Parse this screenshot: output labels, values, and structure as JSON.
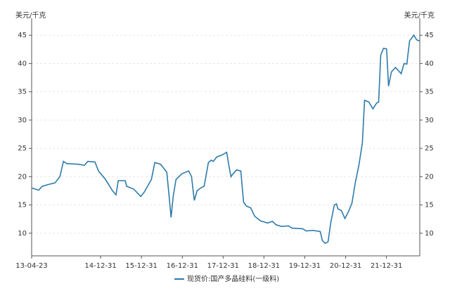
{
  "chart_data": {
    "type": "line",
    "y_label": "美元/千克",
    "y2_label": "美元/千克",
    "x": [
      "13-04-23",
      "13-05-25",
      "13-06-25",
      "13-07-27",
      "13-09-16",
      "13-11-18",
      "14-01-01",
      "14-02-01",
      "14-03-04",
      "14-06-07",
      "14-08-08",
      "14-09-08",
      "14-11-10",
      "14-12-12",
      "15-02-13",
      "15-04-17",
      "15-05-18",
      "15-06-07",
      "15-08-08",
      "15-08-21",
      "15-10-23",
      "15-12-25",
      "16-01-26",
      "16-03-29",
      "16-04-29",
      "16-06-19",
      "16-08-14",
      "16-09-02",
      "16-09-21",
      "16-10-10",
      "16-11-04",
      "16-12-25",
      "17-02-26",
      "17-03-23",
      "17-04-17",
      "17-05-12",
      "17-06-13",
      "17-07-14",
      "17-08-21",
      "17-09-15",
      "17-10-04",
      "17-11-04",
      "17-12-18",
      "18-02-01",
      "18-02-20",
      "18-03-11",
      "18-03-30",
      "18-04-30",
      "18-06-07",
      "18-07-02",
      "18-07-27",
      "18-09-03",
      "18-10-10",
      "18-11-30",
      "19-02-01",
      "19-03-17",
      "19-04-17",
      "19-06-07",
      "19-08-08",
      "19-09-08",
      "19-12-12",
      "20-01-13",
      "20-03-16",
      "20-05-18",
      "20-06-06",
      "20-07-01",
      "20-07-27",
      "20-08-21",
      "20-09-21",
      "20-10-10",
      "20-10-23",
      "20-11-23",
      "20-12-24",
      "21-01-25",
      "21-02-25",
      "21-03-28",
      "21-04-28",
      "21-05-30",
      "21-06-18",
      "21-07-26",
      "21-09-02",
      "21-10-03",
      "21-10-22",
      "21-11-10",
      "21-12-05",
      "22-01-01",
      "22-01-19",
      "22-02-13",
      "22-03-22",
      "22-05-12",
      "22-06-06",
      "22-07-01",
      "22-07-26",
      "22-09-02",
      "22-09-27",
      "22-10-22"
    ],
    "series": [
      {
        "name": "现货价:国产多晶硅料(一级料)",
        "color": "#2e7bab",
        "values": [
          18,
          17.8,
          17.6,
          18.3,
          18.6,
          18.9,
          20,
          22.7,
          22.3,
          22.2,
          22,
          22.7,
          22.6,
          21,
          19.5,
          17.5,
          16.8,
          19.3,
          19.3,
          18.3,
          17.8,
          16.5,
          17.3,
          19.5,
          22.5,
          22.2,
          20.8,
          17,
          12.8,
          16.5,
          19.5,
          20.5,
          21,
          20,
          15.8,
          17.5,
          18,
          18.3,
          22.5,
          22.9,
          22.7,
          23.5,
          23.8,
          24.3,
          22,
          20,
          20.5,
          21.2,
          21,
          15.5,
          14.8,
          14.5,
          13,
          12.2,
          11.8,
          12.1,
          11.5,
          11.2,
          11.3,
          10.9,
          10.8,
          10.4,
          10.5,
          10.3,
          8.7,
          8.2,
          8.5,
          12,
          15,
          15.2,
          14.3,
          14,
          12.6,
          13.8,
          15.3,
          19,
          22,
          26,
          33.5,
          33.2,
          32,
          33,
          33.2,
          41.5,
          42.7,
          42.6,
          36,
          38.5,
          39.3,
          38.2,
          40,
          39.9,
          44,
          45,
          44.2,
          44
        ]
      }
    ],
    "xlim": [
      "13-04-23",
      "22-10-25"
    ],
    "xticks": [
      "13-04-23",
      "14-12-31",
      "15-12-31",
      "16-12-31",
      "17-12-31",
      "18-12-31",
      "19-12-31",
      "20-12-31",
      "21-12-31"
    ],
    "ylim": [
      6,
      48
    ],
    "yticks": [
      10,
      15,
      20,
      25,
      30,
      35,
      40,
      45
    ],
    "y2lim": [
      6,
      48
    ],
    "y2ticks": [
      10,
      15,
      20,
      25,
      30,
      35,
      40,
      45
    ],
    "grid": true,
    "legend": "bottom"
  }
}
